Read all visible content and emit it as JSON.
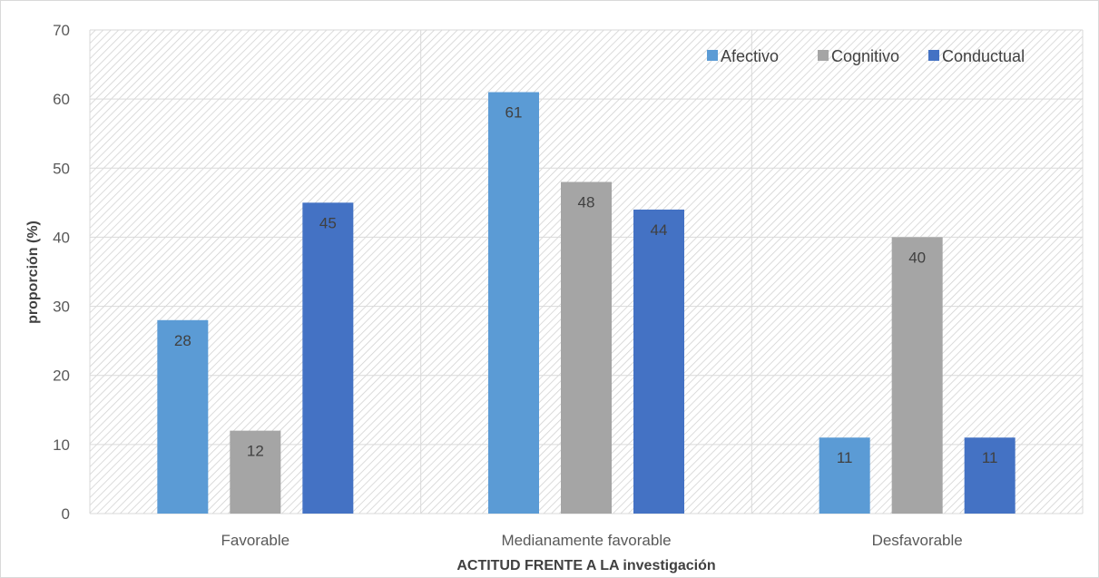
{
  "chart_data": {
    "type": "bar",
    "title": "",
    "xlabel": "ACTITUD FRENTE A LA investigación",
    "ylabel": "proporción (%)",
    "ylim": [
      0,
      70
    ],
    "yticks": [
      0,
      10,
      20,
      30,
      40,
      50,
      60,
      70
    ],
    "categories": [
      "Favorable",
      "Medianamente favorable",
      "Desfavorable"
    ],
    "series": [
      {
        "name": "Afectivo",
        "values": [
          28,
          61,
          11
        ],
        "color": "#5b9bd5"
      },
      {
        "name": "Cognitivo",
        "values": [
          12,
          48,
          40
        ],
        "color": "#a5a5a5"
      },
      {
        "name": "Conductual",
        "values": [
          45,
          44,
          11
        ],
        "color": "#4472c4"
      }
    ],
    "grid": true,
    "data_labels": true,
    "legend_position": "top-right",
    "plot_background": "diagonal hatch"
  }
}
